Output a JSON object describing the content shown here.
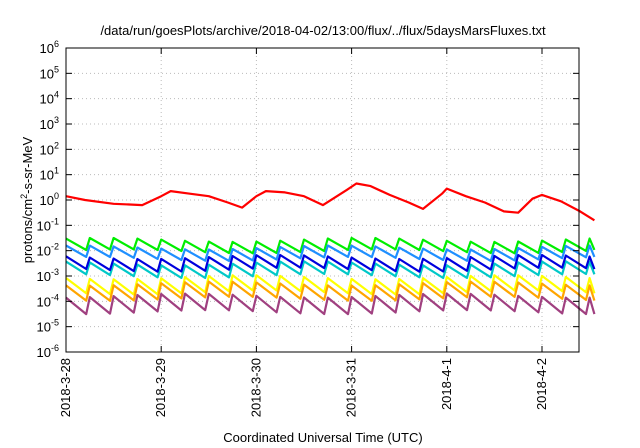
{
  "chart_data": {
    "type": "line",
    "title": "/data/run/goesPlots/archive/2018-04-02/13:00/flux/../flux/5daysMarsFluxes.txt",
    "xlabel": "Coordinated Universal Time (UTC)",
    "ylabel": {
      "base": "protons/cm",
      "sup": "2",
      "rest": "-s-sr-MeV"
    },
    "x_start": "2018-03-28",
    "x_end_days": 5.55,
    "x_ticks": [
      "2018-3-28",
      "2018-3-29",
      "2018-3-30",
      "2018-3-31",
      "2018-4-1",
      "2018-4-2"
    ],
    "y_scale": "log",
    "y_exponent_range": [
      -6,
      6
    ],
    "y_tick_exponents": [
      -6,
      -5,
      -4,
      -3,
      -2,
      -1,
      0,
      1,
      2,
      3,
      4,
      5,
      6
    ],
    "grid": true,
    "series": [
      {
        "color": "#ff0000",
        "base_log": 0.1,
        "sawtooth_amp": 0.3,
        "points": [
          [
            0.0,
            0.15
          ],
          [
            0.2,
            0.0
          ],
          [
            0.5,
            -0.15
          ],
          [
            0.8,
            -0.2
          ],
          [
            1.0,
            0.15
          ],
          [
            1.1,
            0.35
          ],
          [
            1.3,
            0.25
          ],
          [
            1.5,
            0.15
          ],
          [
            1.7,
            -0.1
          ],
          [
            1.85,
            -0.3
          ],
          [
            2.0,
            0.15
          ],
          [
            2.1,
            0.35
          ],
          [
            2.3,
            0.3
          ],
          [
            2.5,
            0.15
          ],
          [
            2.7,
            -0.2
          ],
          [
            2.95,
            0.4
          ],
          [
            3.05,
            0.65
          ],
          [
            3.2,
            0.55
          ],
          [
            3.4,
            0.2
          ],
          [
            3.6,
            -0.1
          ],
          [
            3.75,
            -0.35
          ],
          [
            3.95,
            0.25
          ],
          [
            4.0,
            0.45
          ],
          [
            4.2,
            0.15
          ],
          [
            4.4,
            -0.1
          ],
          [
            4.6,
            -0.45
          ],
          [
            4.75,
            -0.5
          ],
          [
            4.9,
            0.05
          ],
          [
            5.0,
            0.2
          ],
          [
            5.2,
            -0.05
          ],
          [
            5.4,
            -0.45
          ],
          [
            5.55,
            -0.8
          ]
        ]
      },
      {
        "color": "#00ee00",
        "base_log": -1.8,
        "sawtooth_amp": 0.45
      },
      {
        "color": "#1f8fff",
        "base_log": -2.1,
        "sawtooth_amp": 0.45
      },
      {
        "color": "#00c8c8",
        "base_log": -2.75,
        "sawtooth_amp": 0.5
      },
      {
        "color": "#0000dd",
        "base_log": -2.5,
        "sawtooth_amp": 0.5
      },
      {
        "color": "#ffff00",
        "base_log": -3.35,
        "sawtooth_amp": 0.6
      },
      {
        "color": "#ffa500",
        "base_log": -3.6,
        "sawtooth_amp": 0.6
      },
      {
        "color": "#a04080",
        "base_log": -4.1,
        "sawtooth_amp": 0.65
      }
    ],
    "sawtooth_period_days": 0.25
  }
}
